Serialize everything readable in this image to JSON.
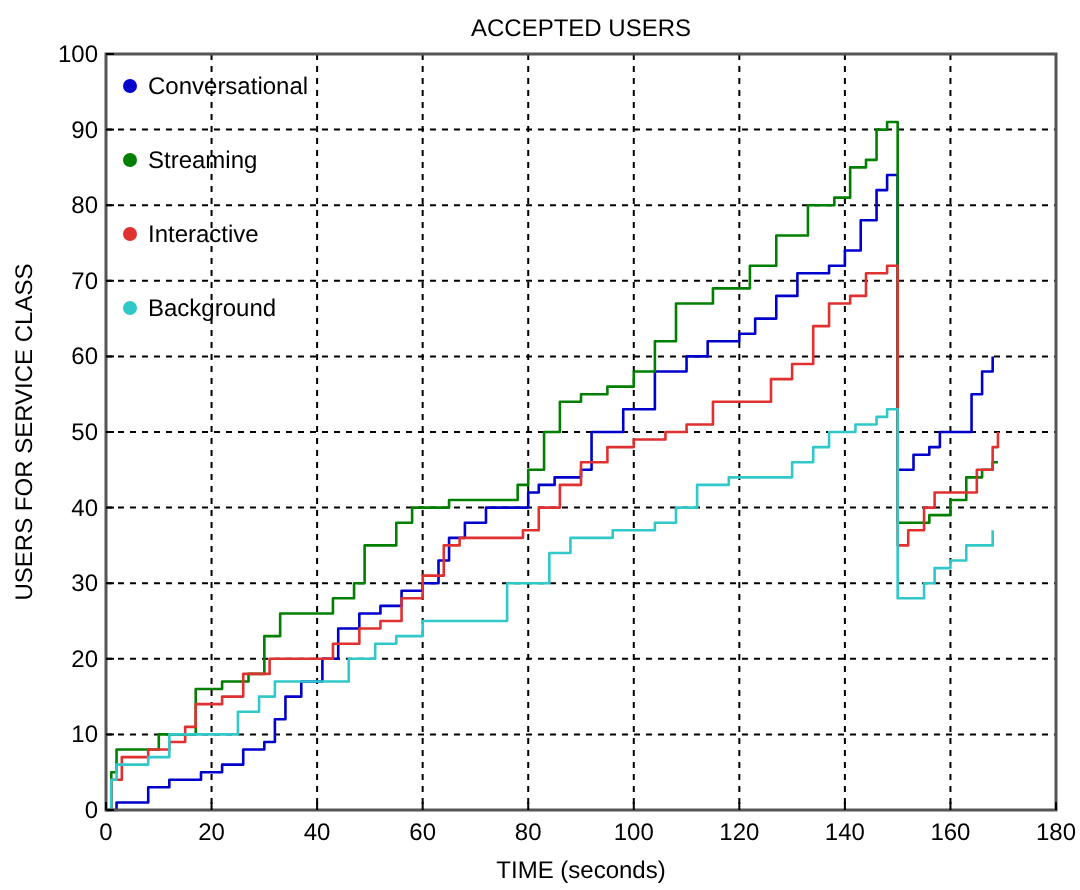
{
  "chart_data": {
    "type": "step",
    "title": "ACCEPTED USERS",
    "xlabel": "TIME (seconds)",
    "ylabel": "USERS FOR SERVICE CLASS",
    "xlim": [
      0,
      180
    ],
    "ylim": [
      0,
      100
    ],
    "xticks": [
      0,
      20,
      40,
      60,
      80,
      100,
      120,
      140,
      160,
      180
    ],
    "yticks": [
      0,
      10,
      20,
      30,
      40,
      50,
      60,
      70,
      80,
      90,
      100
    ],
    "grid": true,
    "legend": "top left",
    "line_style": "solid",
    "marker": "none",
    "series": [
      {
        "name": "Conversational",
        "color": "#0000cc",
        "x": [
          0,
          2,
          8,
          12,
          18,
          22,
          26,
          30,
          32,
          34,
          37,
          41,
          44,
          48,
          52,
          56,
          60,
          63,
          65,
          68,
          72,
          80,
          82,
          85,
          90,
          92,
          98,
          104,
          110,
          114,
          120,
          123,
          127,
          131,
          137,
          140,
          143,
          146,
          148,
          150,
          150,
          153,
          156,
          158,
          162,
          164,
          166,
          168
        ],
        "values": [
          0,
          1,
          3,
          4,
          5,
          6,
          8,
          9,
          12,
          15,
          17,
          20,
          24,
          26,
          27,
          29,
          30,
          33,
          36,
          38,
          40,
          42,
          43,
          44,
          45,
          50,
          53,
          58,
          60,
          62,
          63,
          65,
          68,
          71,
          72,
          74,
          78,
          82,
          84,
          84,
          45,
          47,
          48,
          50,
          50,
          55,
          58,
          60
        ]
      },
      {
        "name": "Streaming",
        "color": "#007f00",
        "x": [
          0,
          1,
          2,
          8,
          10,
          17,
          22,
          27,
          30,
          33,
          40,
          43,
          47,
          49,
          55,
          58,
          65,
          75,
          78,
          80,
          83,
          86,
          90,
          95,
          100,
          104,
          108,
          115,
          120,
          122,
          127,
          133,
          138,
          141,
          144,
          146,
          148,
          150,
          150,
          156,
          160,
          163,
          166,
          168,
          169
        ],
        "values": [
          0,
          5,
          8,
          8,
          10,
          16,
          17,
          18,
          23,
          26,
          26,
          28,
          30,
          35,
          38,
          40,
          41,
          41,
          43,
          45,
          50,
          54,
          55,
          56,
          58,
          62,
          67,
          69,
          69,
          72,
          76,
          80,
          81,
          85,
          86,
          90,
          91,
          91,
          38,
          39,
          41,
          44,
          45,
          46,
          46
        ]
      },
      {
        "name": "Interactive",
        "color": "#e03030",
        "x": [
          0,
          1,
          3,
          8,
          12,
          15,
          17,
          22,
          26,
          31,
          40,
          43,
          48,
          52,
          56,
          60,
          64,
          67,
          79,
          82,
          86,
          90,
          95,
          100,
          106,
          110,
          115,
          124,
          126,
          130,
          134,
          137,
          141,
          144,
          148,
          150,
          150,
          152,
          155,
          157,
          163,
          165,
          168,
          169
        ],
        "values": [
          0,
          4,
          7,
          8,
          9,
          11,
          14,
          15,
          18,
          20,
          20,
          22,
          24,
          25,
          28,
          31,
          35,
          36,
          37,
          40,
          43,
          46,
          48,
          49,
          50,
          51,
          54,
          54,
          57,
          59,
          64,
          67,
          68,
          71,
          72,
          72,
          35,
          37,
          40,
          42,
          42,
          45,
          48,
          50
        ]
      },
      {
        "name": "Background",
        "color": "#30c8c8",
        "x": [
          0,
          1,
          2,
          8,
          12,
          20,
          25,
          29,
          32,
          40,
          46,
          51,
          55,
          60,
          72,
          76,
          80,
          84,
          88,
          93,
          96,
          100,
          104,
          108,
          112,
          118,
          126,
          130,
          134,
          137,
          142,
          146,
          148,
          150,
          150,
          153,
          155,
          157,
          160,
          163,
          168
        ],
        "values": [
          0,
          4,
          6,
          7,
          10,
          10,
          13,
          15,
          17,
          17,
          20,
          22,
          23,
          25,
          25,
          30,
          30,
          34,
          36,
          36,
          37,
          37,
          38,
          40,
          43,
          44,
          44,
          46,
          48,
          50,
          51,
          52,
          53,
          53,
          28,
          28,
          30,
          32,
          33,
          35,
          37
        ]
      }
    ]
  }
}
